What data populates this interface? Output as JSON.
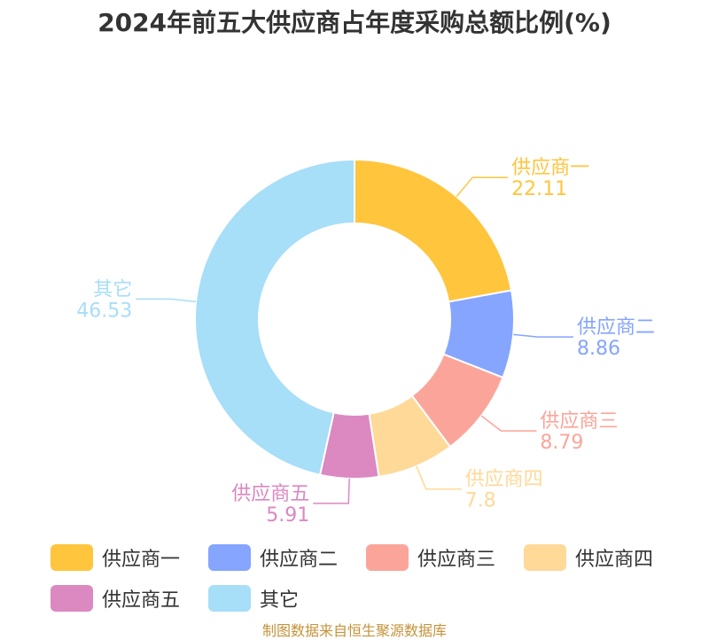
{
  "chart_data": {
    "type": "pie",
    "title": "2024年前五大供应商占年度采购总额比例(%)",
    "categories": [
      "供应商一",
      "供应商二",
      "供应商三",
      "供应商四",
      "供应商五",
      "其它"
    ],
    "values": [
      22.11,
      8.86,
      8.79,
      7.8,
      5.91,
      46.53
    ],
    "value_labels": [
      "22.11",
      "8.86",
      "8.79",
      "7.8",
      "5.91",
      "46.53"
    ],
    "colors": [
      "#ffc53d",
      "#85a5ff",
      "#fba59a",
      "#ffd998",
      "#dc88c1",
      "#a7def8"
    ],
    "donut": true,
    "legend_position": "bottom"
  },
  "source": "制图数据来自恒生聚源数据库"
}
